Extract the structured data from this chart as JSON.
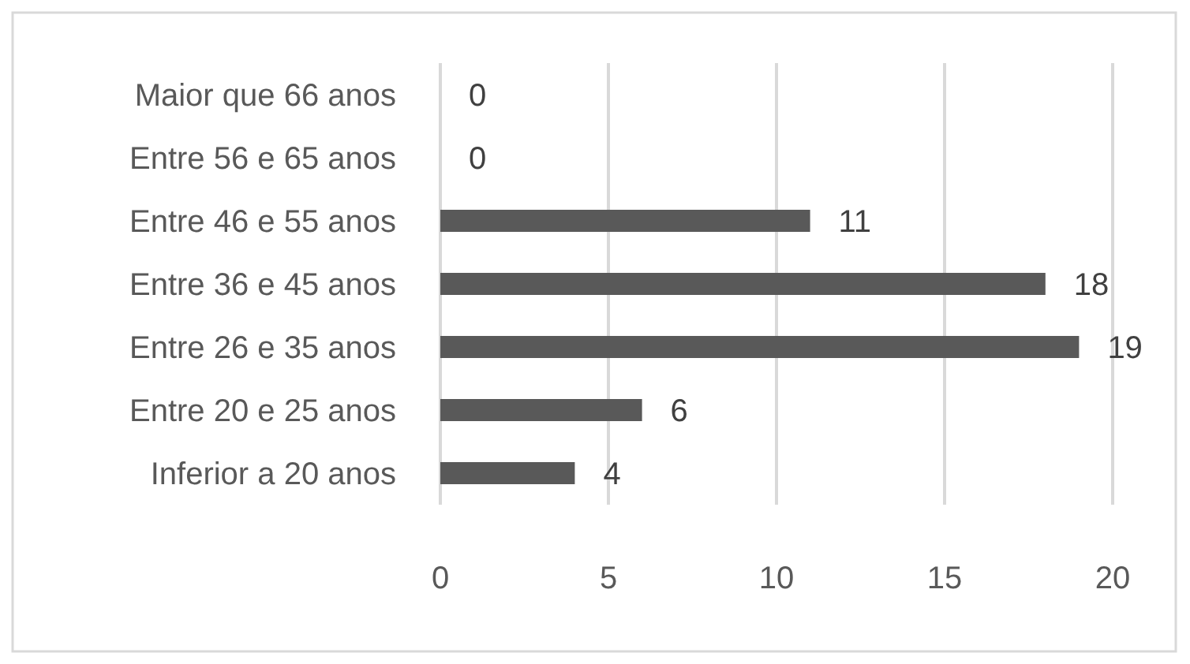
{
  "chart_data": {
    "type": "bar",
    "orientation": "horizontal",
    "categories": [
      "Maior que 66 anos",
      "Entre 56 e 65 anos",
      "Entre 46 e 55 anos",
      "Entre 36 e 45 anos",
      "Entre 26 e 35 anos",
      "Entre 20 e 25 anos",
      "Inferior a 20 anos"
    ],
    "values": [
      0,
      0,
      11,
      18,
      19,
      6,
      4
    ],
    "color": "#595959",
    "xlim": [
      0,
      20
    ],
    "xticks": [
      0,
      5,
      10,
      15,
      20
    ],
    "grid": "x",
    "data_labels": true
  }
}
